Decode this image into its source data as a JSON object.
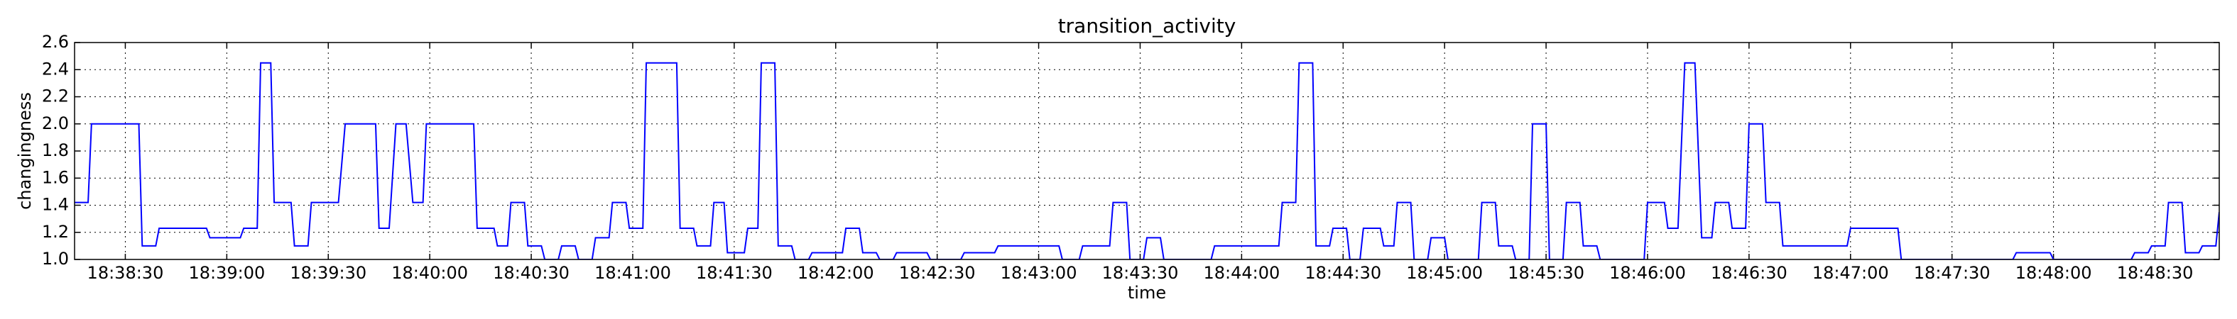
{
  "chart_data": {
    "type": "line",
    "title": "transition_activity",
    "xlabel": "time",
    "ylabel": "changingness",
    "x": [
      "18:38:15",
      "18:38:19",
      "18:38:20",
      "18:38:34",
      "18:38:35",
      "18:38:39",
      "18:38:40",
      "18:38:54",
      "18:38:55",
      "18:39:04",
      "18:39:05",
      "18:39:09",
      "18:39:10",
      "18:39:13",
      "18:39:14",
      "18:39:19",
      "18:39:20",
      "18:39:24",
      "18:39:25",
      "18:39:33",
      "18:39:35",
      "18:39:44",
      "18:39:45",
      "18:39:48",
      "18:39:50",
      "18:39:53",
      "18:39:55",
      "18:39:58",
      "18:39:59",
      "18:40:13",
      "18:40:14",
      "18:40:19",
      "18:40:20",
      "18:40:23",
      "18:40:24",
      "18:40:28",
      "18:40:29",
      "18:40:33",
      "18:40:34",
      "18:40:38",
      "18:40:39",
      "18:40:43",
      "18:40:44",
      "18:40:48",
      "18:40:49",
      "18:40:53",
      "18:40:54",
      "18:40:58",
      "18:40:59",
      "18:41:03",
      "18:41:04",
      "18:41:13",
      "18:41:14",
      "18:41:18",
      "18:41:19",
      "18:41:23",
      "18:41:24",
      "18:41:27",
      "18:41:28",
      "18:41:33",
      "18:41:34",
      "18:41:37",
      "18:41:38",
      "18:41:42",
      "18:41:43",
      "18:41:47",
      "18:41:48",
      "18:41:52",
      "18:41:53",
      "18:42:02",
      "18:42:03",
      "18:42:07",
      "18:42:08",
      "18:42:12",
      "18:42:13",
      "18:42:17",
      "18:42:18",
      "18:42:27",
      "18:42:28",
      "18:42:37",
      "18:42:38",
      "18:42:47",
      "18:42:48",
      "18:43:06",
      "18:43:07",
      "18:43:12",
      "18:43:13",
      "18:43:21",
      "18:43:22",
      "18:43:26",
      "18:43:27",
      "18:43:31",
      "18:43:32",
      "18:43:36",
      "18:43:37",
      "18:43:51",
      "18:43:52",
      "18:44:11",
      "18:44:12",
      "18:44:16",
      "18:44:17",
      "18:44:21",
      "18:44:22",
      "18:44:26",
      "18:44:27",
      "18:44:31",
      "18:44:32",
      "18:44:35",
      "18:44:36",
      "18:44:41",
      "18:44:42",
      "18:44:45",
      "18:44:46",
      "18:44:50",
      "18:44:51",
      "18:44:55",
      "18:44:56",
      "18:45:00",
      "18:45:01",
      "18:45:10",
      "18:45:11",
      "18:45:15",
      "18:45:16",
      "18:45:20",
      "18:45:21",
      "18:45:25",
      "18:45:26",
      "18:45:30",
      "18:45:31",
      "18:45:35",
      "18:45:36",
      "18:45:40",
      "18:45:41",
      "18:45:45",
      "18:45:46",
      "18:45:59",
      "18:46:00",
      "18:46:05",
      "18:46:06",
      "18:46:09",
      "18:46:11",
      "18:46:14",
      "18:46:16",
      "18:46:19",
      "18:46:20",
      "18:46:24",
      "18:46:25",
      "18:46:29",
      "18:46:30",
      "18:46:34",
      "18:46:35",
      "18:46:39",
      "18:46:40",
      "18:46:59",
      "18:47:00",
      "18:47:14",
      "18:47:15",
      "18:47:48",
      "18:47:49",
      "18:47:59",
      "18:48:00",
      "18:48:23",
      "18:48:24",
      "18:48:28",
      "18:48:29",
      "18:48:33",
      "18:48:34",
      "18:48:38",
      "18:48:39",
      "18:48:43",
      "18:48:44",
      "18:48:48",
      "18:48:49"
    ],
    "values": [
      1.42,
      1.42,
      2.0,
      2.0,
      1.1,
      1.1,
      1.23,
      1.23,
      1.16,
      1.16,
      1.23,
      1.23,
      2.45,
      2.45,
      1.42,
      1.42,
      1.1,
      1.1,
      1.42,
      1.42,
      2.0,
      2.0,
      1.23,
      1.23,
      2.0,
      2.0,
      1.42,
      1.42,
      2.0,
      2.0,
      1.23,
      1.23,
      1.1,
      1.1,
      1.42,
      1.42,
      1.1,
      1.1,
      1.0,
      1.0,
      1.1,
      1.1,
      1.0,
      1.0,
      1.16,
      1.16,
      1.42,
      1.42,
      1.23,
      1.23,
      2.45,
      2.45,
      1.23,
      1.23,
      1.1,
      1.1,
      1.42,
      1.42,
      1.05,
      1.05,
      1.23,
      1.23,
      2.45,
      2.45,
      1.1,
      1.1,
      1.0,
      1.0,
      1.05,
      1.05,
      1.23,
      1.23,
      1.05,
      1.05,
      1.0,
      1.0,
      1.05,
      1.05,
      1.0,
      1.0,
      1.05,
      1.05,
      1.1,
      1.1,
      1.0,
      1.0,
      1.1,
      1.1,
      1.42,
      1.42,
      1.0,
      1.0,
      1.16,
      1.16,
      1.0,
      1.0,
      1.1,
      1.1,
      1.42,
      1.42,
      2.45,
      2.45,
      1.1,
      1.1,
      1.23,
      1.23,
      1.0,
      1.0,
      1.23,
      1.23,
      1.1,
      1.1,
      1.42,
      1.42,
      1.0,
      1.0,
      1.16,
      1.16,
      1.0,
      1.0,
      1.42,
      1.42,
      1.1,
      1.1,
      1.0,
      1.0,
      2.0,
      2.0,
      1.0,
      1.0,
      1.42,
      1.42,
      1.1,
      1.1,
      1.0,
      1.0,
      1.42,
      1.42,
      1.23,
      1.23,
      2.45,
      2.45,
      1.16,
      1.16,
      1.42,
      1.42,
      1.23,
      1.23,
      2.0,
      2.0,
      1.42,
      1.42,
      1.1,
      1.1,
      1.23,
      1.23,
      1.0,
      1.0,
      1.05,
      1.05,
      1.0,
      1.0,
      1.05,
      1.05,
      1.1,
      1.1,
      1.42,
      1.42,
      1.05,
      1.05,
      1.1,
      1.1,
      1.35
    ],
    "color": "#0000ff",
    "xlim": [
      "18:38:15",
      "18:48:49"
    ],
    "xticks": [
      "18:38:30",
      "18:39:00",
      "18:39:30",
      "18:40:00",
      "18:40:30",
      "18:41:00",
      "18:41:30",
      "18:42:00",
      "18:42:30",
      "18:43:00",
      "18:43:30",
      "18:44:00",
      "18:44:30",
      "18:45:00",
      "18:45:30",
      "18:46:00",
      "18:46:30",
      "18:47:00",
      "18:47:30",
      "18:48:00",
      "18:48:30"
    ],
    "ylim": [
      1.0,
      2.6
    ],
    "yticks": [
      {
        "value": 1,
        "label": "1.0"
      },
      1.2,
      1.4,
      1.6,
      1.8,
      {
        "value": 2,
        "label": "2.0"
      },
      2.2,
      2.4,
      2.6
    ],
    "grid": true
  }
}
